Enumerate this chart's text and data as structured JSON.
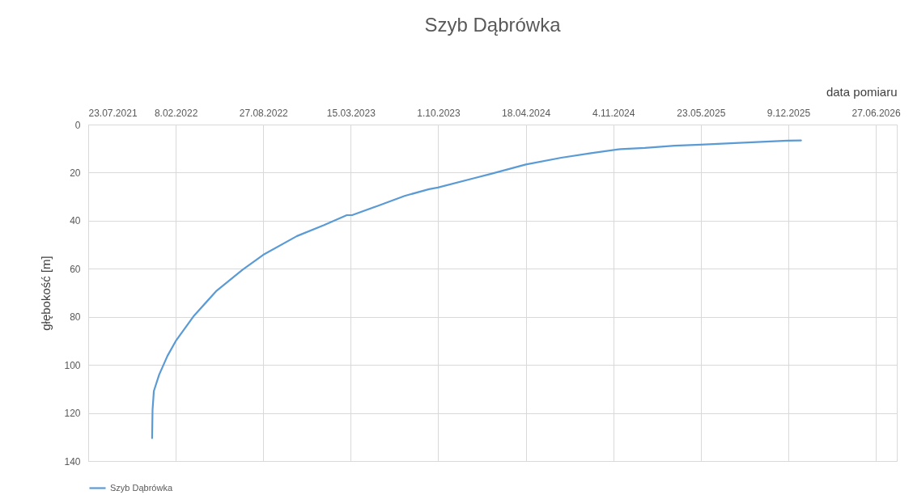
{
  "chart_data": {
    "type": "line",
    "title": "Szyb Dąbrówka",
    "xlabel": "data pomiaru",
    "ylabel": "głębokość [m]",
    "xlim": [
      "2021-07-23",
      "2026-08-14"
    ],
    "xticks": [
      {
        "value": "2021-07-23",
        "label": "23.07.2021"
      },
      {
        "value": "2022-02-08",
        "label": "8.02.2022"
      },
      {
        "value": "2022-08-27",
        "label": "27.08.2022"
      },
      {
        "value": "2023-03-15",
        "label": "15.03.2023"
      },
      {
        "value": "2023-10-01",
        "label": "1.10.2023"
      },
      {
        "value": "2024-04-18",
        "label": "18.04.2024"
      },
      {
        "value": "2024-11-04",
        "label": "4.11.2024"
      },
      {
        "value": "2025-05-23",
        "label": "23.05.2025"
      },
      {
        "value": "2025-12-09",
        "label": "9.12.2025"
      },
      {
        "value": "2026-06-27",
        "label": "27.06.2026"
      }
    ],
    "ylim": [
      140,
      0
    ],
    "yticks": [
      0,
      20,
      40,
      60,
      80,
      100,
      120,
      140
    ],
    "grid": true,
    "legend": "bottom",
    "marker": "none",
    "line_style": "solid",
    "x": [
      "2021-12-16",
      "2021-12-17",
      "2021-12-20",
      "2022-01-01",
      "2022-01-20",
      "2022-02-08",
      "2022-03-22",
      "2022-05-11",
      "2022-07-11",
      "2022-08-27",
      "2022-11-12",
      "2023-01-12",
      "2023-03-06",
      "2023-03-18",
      "2023-05-16",
      "2023-07-16",
      "2023-09-10",
      "2023-09-30",
      "2023-12-24",
      "2024-01-30",
      "2024-04-18",
      "2024-07-08",
      "2024-09-14",
      "2024-11-21",
      "2025-01-15",
      "2025-03-24",
      "2025-05-22",
      "2025-08-19",
      "2025-12-08",
      "2026-01-07"
    ],
    "series": [
      {
        "name": "Szyb Dąbrówka",
        "color": "#5b9bd5",
        "values": [
          130.5,
          118.7,
          110.9,
          104.1,
          96.3,
          90.1,
          79.5,
          69.4,
          60.4,
          54.2,
          46.4,
          41.9,
          37.7,
          37.7,
          33.8,
          29.7,
          26.9,
          26.2,
          22.2,
          20.5,
          16.6,
          13.8,
          11.9,
          10.2,
          9.7,
          8.8,
          8.4,
          7.6,
          6.7,
          6.6
        ]
      }
    ]
  }
}
